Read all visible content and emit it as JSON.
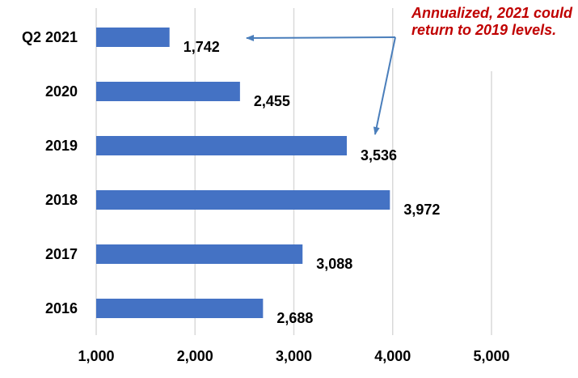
{
  "chart_data": {
    "type": "bar",
    "orientation": "horizontal",
    "categories": [
      "Q2 2021",
      "2020",
      "2019",
      "2018",
      "2017",
      "2016"
    ],
    "values": [
      1742,
      2455,
      3536,
      3972,
      3088,
      2688
    ],
    "data_labels": [
      "1,742",
      "2,455",
      "3,536",
      "3,972",
      "3,088",
      "2,688"
    ],
    "xlim": [
      1000,
      5000
    ],
    "xticks": [
      1000,
      2000,
      3000,
      4000,
      5000
    ],
    "xtick_labels": [
      "1,000",
      "2,000",
      "3,000",
      "4,000",
      "5,000"
    ],
    "grid": "vertical",
    "bar_color": "#4472c4",
    "annotation": {
      "text": "Annualized, 2021 could return to 2019 levels.",
      "color": "#c00000",
      "arrow_color": "#4a7ebb",
      "points_to": [
        "Q2 2021",
        "2019"
      ]
    }
  }
}
